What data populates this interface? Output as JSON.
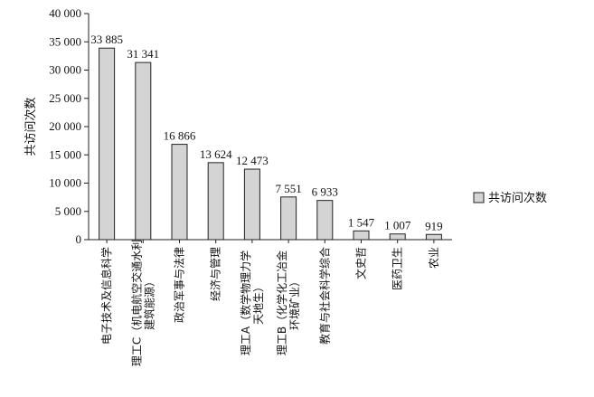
{
  "chart_data": {
    "type": "bar",
    "title": "",
    "xlabel": "",
    "ylabel": "共访问次数",
    "ylim": [
      0,
      40000
    ],
    "yticks": [
      "0",
      "5 000",
      "10 000",
      "15 000",
      "20 000",
      "25 000",
      "30 000",
      "35 000",
      "40 000"
    ],
    "ytick_values": [
      0,
      5000,
      10000,
      15000,
      20000,
      25000,
      30000,
      35000,
      40000
    ],
    "grid": false,
    "legend_position": "right",
    "series": [
      {
        "name": "共访问次数",
        "color": "#d4d4d4",
        "values": [
          33885,
          31341,
          16866,
          13624,
          12473,
          7551,
          6933,
          1547,
          1007,
          919
        ],
        "value_labels": [
          "33 885",
          "31 341",
          "16 866",
          "13 624",
          "12 473",
          "7 551",
          "6 933",
          "1 547",
          "1 007",
          "919"
        ]
      }
    ],
    "categories": [
      "电子技术及信息科学",
      "理工C（机电航空交通水利建筑能源）",
      "政治军事与法律",
      "经济与管理",
      "理工A（数学物理力学天地生）",
      "理工B（化学化工冶金环境矿业）",
      "教育与社会科学综合",
      "文史哲",
      "医药卫生",
      "农业"
    ],
    "category_lines": [
      [
        "电子技术及信息科学"
      ],
      [
        "理工C（机电航空交通水利",
        "建筑能源）"
      ],
      [
        "政治军事与法律"
      ],
      [
        "经济与管理"
      ],
      [
        "理工A（数学物理力学",
        "天地生）"
      ],
      [
        "理工B（化学化工冶金",
        "环境矿业）"
      ],
      [
        "教育与社会科学综合"
      ],
      [
        "文史哲"
      ],
      [
        "医药卫生"
      ],
      [
        "农业"
      ]
    ]
  }
}
